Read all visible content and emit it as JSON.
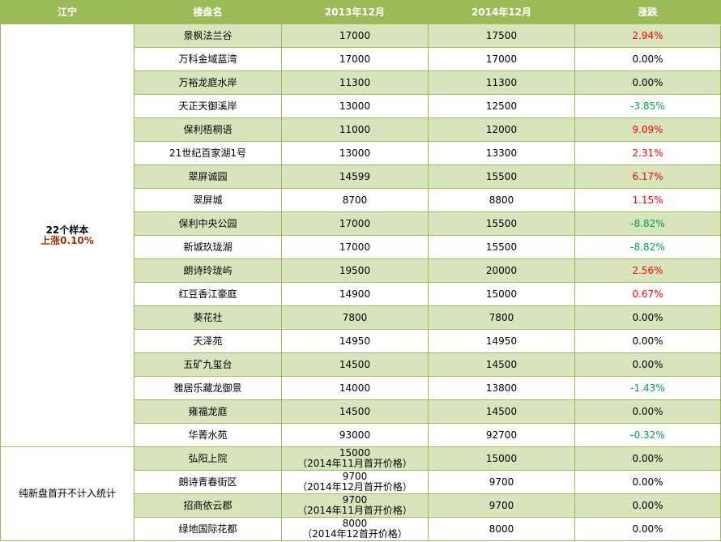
{
  "headers": [
    "江宁",
    "楼盘名",
    "2013年12月",
    "2014年12月",
    "涨跌"
  ],
  "group1": {
    "sample": "22个样本",
    "change": "上涨0.10%"
  },
  "group2": {
    "label": "纯新盘首开不计入统计"
  },
  "colors": {
    "header": "#9bbb59",
    "alt_row": "#d8e4bc",
    "up": "#ff0000",
    "down": "#00a050"
  },
  "rows": [
    {
      "name": "景枫法兰谷",
      "p2013": "17000",
      "p2014": "17500",
      "chg": "2.94%",
      "dir": "up"
    },
    {
      "name": "万科金域蓝湾",
      "p2013": "17000",
      "p2014": "17000",
      "chg": "0.00%",
      "dir": "flat"
    },
    {
      "name": "万裕龙庭水岸",
      "p2013": "11300",
      "p2014": "11300",
      "chg": "0.00%",
      "dir": "flat"
    },
    {
      "name": "天正天御溪岸",
      "p2013": "13000",
      "p2014": "12500",
      "chg": "-3.85%",
      "dir": "down"
    },
    {
      "name": "保利梧桐语",
      "p2013": "11000",
      "p2014": "12000",
      "chg": "9.09%",
      "dir": "up"
    },
    {
      "name": "21世纪百家湖1号",
      "p2013": "13000",
      "p2014": "13300",
      "chg": "2.31%",
      "dir": "up"
    },
    {
      "name": "翠屏诚园",
      "p2013": "14599",
      "p2014": "15500",
      "chg": "6.17%",
      "dir": "up"
    },
    {
      "name": "翠屏城",
      "p2013": "8700",
      "p2014": "8800",
      "chg": "1.15%",
      "dir": "up"
    },
    {
      "name": "保利中央公园",
      "p2013": "17000",
      "p2014": "15500",
      "chg": "-8.82%",
      "dir": "down"
    },
    {
      "name": "新城玖珑湖",
      "p2013": "17000",
      "p2014": "15500",
      "chg": "-8.82%",
      "dir": "down"
    },
    {
      "name": "朗诗玲珑屿",
      "p2013": "19500",
      "p2014": "20000",
      "chg": "2.56%",
      "dir": "up"
    },
    {
      "name": "红豆香江豪庭",
      "p2013": "14900",
      "p2014": "15000",
      "chg": "0.67%",
      "dir": "up"
    },
    {
      "name": "葵花社",
      "p2013": "7800",
      "p2014": "7800",
      "chg": "0.00%",
      "dir": "flat"
    },
    {
      "name": "天泽苑",
      "p2013": "14950",
      "p2014": "14950",
      "chg": "0.00%",
      "dir": "flat"
    },
    {
      "name": "五矿九玺台",
      "p2013": "14500",
      "p2014": "14500",
      "chg": "0.00%",
      "dir": "flat"
    },
    {
      "name": "雅居乐藏龙御景",
      "p2013": "14000",
      "p2014": "13800",
      "chg": "-1.43%",
      "dir": "down"
    },
    {
      "name": "雍福龙庭",
      "p2013": "14500",
      "p2014": "14500",
      "chg": "0.00%",
      "dir": "flat"
    },
    {
      "name": "华菁水苑",
      "p2013": "93000",
      "p2014": "92700",
      "chg": "-0.32%",
      "dir": "down"
    }
  ],
  "new_rows": [
    {
      "name": "弘阳上院",
      "p2013": "15000",
      "note": "（2014年11月首开价格）",
      "p2014": "15000",
      "chg": "0.00%"
    },
    {
      "name": "朗诗青春街区",
      "p2013": "9700",
      "note": "（2014年12月首开价格）",
      "p2014": "9700",
      "chg": "0.00%"
    },
    {
      "name": "招商依云郡",
      "p2013": "9700",
      "note": "（2014年11月首开价格）",
      "p2014": "9700",
      "chg": "0.00%"
    },
    {
      "name": "绿地国际花都",
      "p2013": "8000",
      "note": "（2014年12首开价格）",
      "p2014": "8000",
      "chg": "0.00%"
    }
  ]
}
